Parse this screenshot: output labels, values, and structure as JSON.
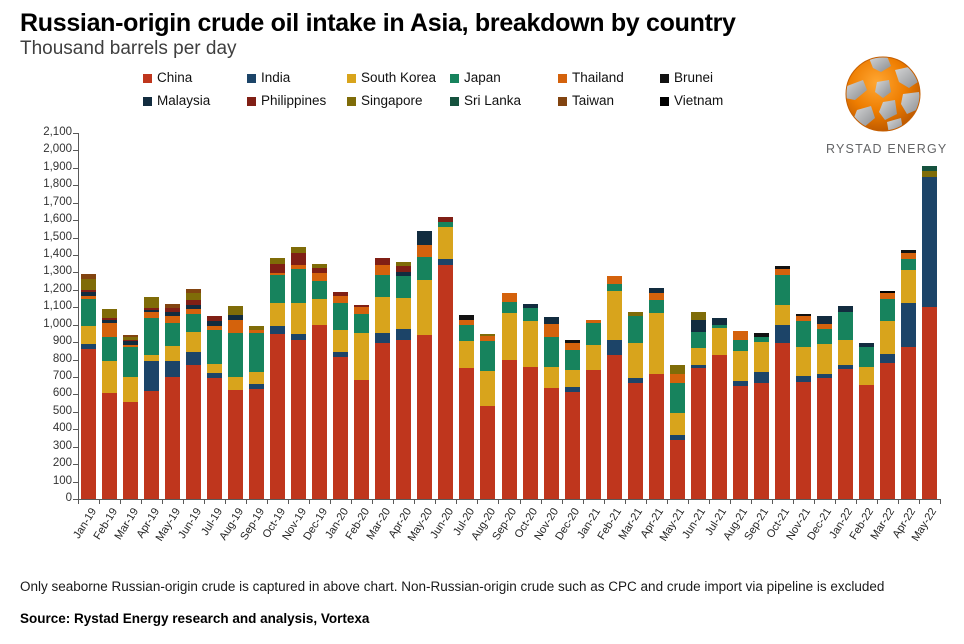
{
  "title": "Russian-origin crude oil intake in Asia, breakdown by country",
  "subtitle": "Thousand barrels per day",
  "logo": {
    "text": "RYSTAD ENERGY",
    "orange": "#ee7d00",
    "gray": "#a7a9ac"
  },
  "footnote": "Only seaborne Russian-origin crude is captured in above chart. Non-Russian-origin crude such as CPC and crude import via pipeline is excluded",
  "source": "Source: Rystad Energy research and analysis,  Vortexa",
  "chart_data": {
    "type": "bar",
    "stacked": true,
    "title": "Russian-origin crude oil intake in Asia, breakdown by country",
    "ylabel": "Thousand barrels per day",
    "ylim": [
      0,
      2100
    ],
    "ytick_step": 100,
    "grid": false,
    "legend_position": "top",
    "categories": [
      "Jan-19",
      "Feb-19",
      "Mar-19",
      "Apr-19",
      "May-19",
      "Jun-19",
      "Jul-19",
      "Aug-19",
      "Sep-19",
      "Oct-19",
      "Nov-19",
      "Dec-19",
      "Jan-20",
      "Feb-20",
      "Mar-20",
      "Apr-20",
      "May-20",
      "Jun-20",
      "Jul-20",
      "Aug-20",
      "Sep-20",
      "Oct-20",
      "Nov-20",
      "Dec-20",
      "Jan-21",
      "Feb-21",
      "Mar-21",
      "Apr-21",
      "May-21",
      "Jun-21",
      "Jul-21",
      "Aug-21",
      "Sep-21",
      "Oct-21",
      "Nov-21",
      "Dec-21",
      "Jan-22",
      "Feb-22",
      "Mar-22",
      "Apr-22",
      "May-22"
    ],
    "series": [
      {
        "name": "China",
        "color": "#bf361d",
        "values": [
          860,
          610,
          555,
          620,
          700,
          770,
          695,
          625,
          630,
          945,
          915,
          1000,
          815,
          685,
          895,
          910,
          940,
          1340,
          750,
          535,
          795,
          760,
          635,
          615,
          740,
          825,
          665,
          720,
          340,
          750,
          825,
          650,
          665,
          895,
          670,
          695,
          745,
          655,
          780,
          870,
          1100
        ]
      },
      {
        "name": "India",
        "color": "#1c4468",
        "values": [
          30,
          0,
          0,
          170,
          90,
          75,
          30,
          0,
          30,
          50,
          30,
          0,
          30,
          0,
          55,
          65,
          0,
          40,
          0,
          0,
          0,
          0,
          0,
          30,
          0,
          85,
          30,
          0,
          30,
          20,
          0,
          30,
          65,
          105,
          35,
          25,
          25,
          0,
          50,
          255,
          745
        ]
      },
      {
        "name": "South Korea",
        "color": "#d8a41c",
        "values": [
          100,
          180,
          145,
          35,
          90,
          115,
          50,
          75,
          70,
          130,
          180,
          150,
          125,
          270,
          210,
          180,
          315,
          180,
          155,
          200,
          270,
          260,
          125,
          95,
          145,
          285,
          200,
          345,
          125,
          95,
          155,
          170,
          170,
          115,
          170,
          170,
          145,
          105,
          190,
          190,
          0
        ]
      },
      {
        "name": "Japan",
        "color": "#17835d",
        "values": [
          155,
          140,
          170,
          215,
          130,
          100,
          195,
          250,
          220,
          160,
          195,
          100,
          155,
          105,
          125,
          125,
          135,
          30,
          95,
          170,
          65,
          75,
          170,
          115,
          125,
          40,
          155,
          75,
          170,
          95,
          20,
          65,
          30,
          170,
          145,
          85,
          160,
          115,
          130,
          65,
          0
        ]
      },
      {
        "name": "Thailand",
        "color": "#d4620c",
        "values": [
          20,
          80,
          15,
          35,
          40,
          30,
          25,
          80,
          20,
          10,
          25,
          45,
          40,
          40,
          55,
          0,
          70,
          0,
          30,
          30,
          50,
          0,
          75,
          40,
          20,
          45,
          0,
          40,
          55,
          0,
          0,
          50,
          0,
          35,
          30,
          30,
          0,
          0,
          30,
          30,
          0
        ]
      },
      {
        "name": "Brunei",
        "color": "#121212",
        "values": [
          0,
          0,
          0,
          0,
          0,
          0,
          0,
          0,
          0,
          0,
          0,
          0,
          0,
          0,
          0,
          0,
          0,
          0,
          25,
          0,
          0,
          0,
          0,
          15,
          0,
          0,
          0,
          0,
          0,
          0,
          0,
          0,
          20,
          15,
          10,
          0,
          0,
          0,
          0,
          20,
          0
        ]
      },
      {
        "name": "Malaysia",
        "color": "#122c3f",
        "values": [
          25,
          20,
          20,
          10,
          25,
          25,
          25,
          25,
          0,
          0,
          0,
          0,
          0,
          0,
          0,
          25,
          75,
          0,
          0,
          0,
          0,
          25,
          40,
          0,
          0,
          0,
          0,
          30,
          0,
          65,
          40,
          0,
          0,
          0,
          0,
          45,
          30,
          20,
          0,
          0,
          0
        ]
      },
      {
        "name": "Philippines",
        "color": "#801f15",
        "values": [
          10,
          10,
          10,
          10,
          20,
          25,
          30,
          0,
          0,
          55,
          65,
          30,
          25,
          15,
          45,
          30,
          0,
          30,
          0,
          0,
          0,
          0,
          0,
          0,
          0,
          0,
          0,
          0,
          0,
          0,
          0,
          0,
          0,
          0,
          0,
          0,
          0,
          0,
          0,
          0,
          0
        ]
      },
      {
        "name": "Singapore",
        "color": "#7f6c08",
        "values": [
          65,
          50,
          15,
          65,
          0,
          40,
          0,
          55,
          20,
          35,
          35,
          25,
          0,
          0,
          0,
          25,
          0,
          0,
          0,
          10,
          0,
          0,
          0,
          0,
          0,
          0,
          25,
          0,
          50,
          50,
          0,
          0,
          0,
          0,
          0,
          0,
          0,
          0,
          0,
          0,
          35
        ]
      },
      {
        "name": "Sri Lanka",
        "color": "#15523e",
        "values": [
          0,
          0,
          0,
          0,
          0,
          0,
          0,
          0,
          0,
          0,
          0,
          0,
          0,
          0,
          0,
          0,
          0,
          0,
          0,
          0,
          0,
          0,
          0,
          0,
          0,
          0,
          0,
          0,
          0,
          0,
          0,
          0,
          0,
          0,
          0,
          0,
          0,
          0,
          0,
          0,
          30
        ]
      },
      {
        "name": "Taiwan",
        "color": "#824410",
        "values": [
          25,
          0,
          10,
          0,
          25,
          25,
          0,
          0,
          0,
          0,
          0,
          0,
          0,
          0,
          0,
          0,
          0,
          0,
          0,
          0,
          0,
          0,
          0,
          0,
          0,
          0,
          0,
          0,
          0,
          0,
          0,
          0,
          0,
          0,
          0,
          0,
          0,
          0,
          0,
          0,
          0
        ]
      },
      {
        "name": "Vietnam",
        "color": "#000000",
        "values": [
          0,
          0,
          0,
          0,
          0,
          0,
          0,
          0,
          0,
          0,
          0,
          0,
          0,
          0,
          0,
          0,
          0,
          0,
          0,
          0,
          0,
          0,
          0,
          0,
          0,
          0,
          0,
          0,
          0,
          0,
          0,
          0,
          0,
          0,
          0,
          0,
          0,
          0,
          15,
          0,
          0
        ]
      }
    ]
  }
}
